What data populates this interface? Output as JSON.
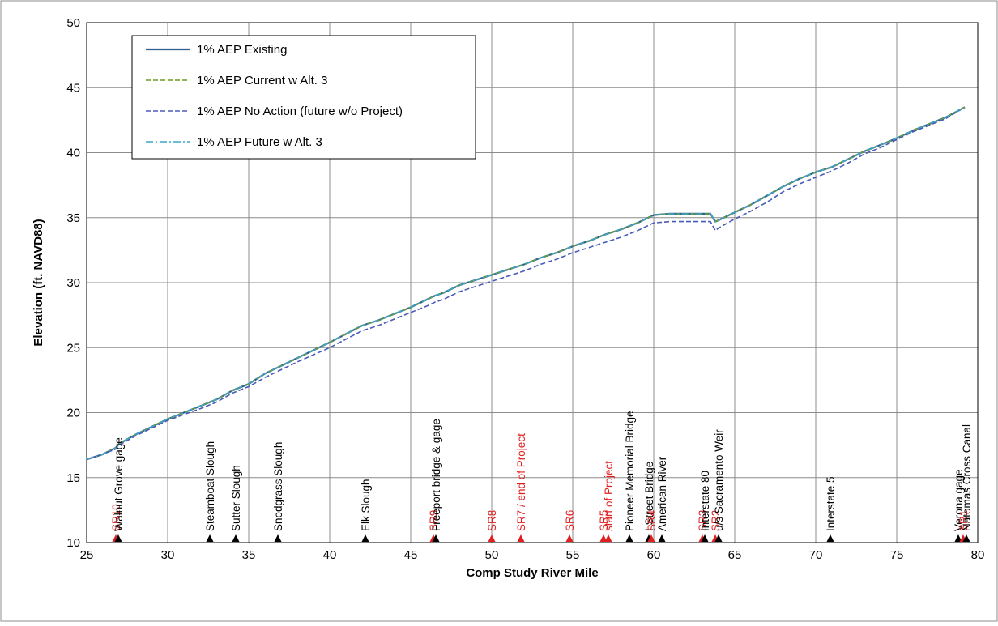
{
  "chart_data": {
    "type": "line",
    "title": "",
    "xlabel": "Comp Study River Mile",
    "ylabel": "Elevation (ft. NAVD88)",
    "xlim": [
      25,
      80
    ],
    "ylim": [
      10,
      50
    ],
    "xticks": [
      "25",
      "30",
      "35",
      "40",
      "45",
      "50",
      "55",
      "60",
      "65",
      "70",
      "75",
      "80"
    ],
    "yticks": [
      "10",
      "15",
      "20",
      "25",
      "30",
      "35",
      "40",
      "45",
      "50"
    ],
    "grid": true,
    "legend": "top-left",
    "series": [
      {
        "name": "1% AEP Existing",
        "color": "#2f5d8c",
        "style": "solid",
        "x": [
          25,
          26,
          26.8,
          27,
          28,
          30,
          32,
          33,
          34,
          35,
          36,
          37,
          38,
          40,
          42,
          43,
          44,
          45,
          46,
          46.5,
          47,
          48,
          50,
          51,
          52,
          53,
          54,
          55,
          56,
          57,
          58,
          59,
          60,
          61,
          62,
          63,
          63.5,
          63.8,
          64,
          65,
          66,
          67,
          68,
          69,
          70,
          71,
          72,
          73,
          74,
          75,
          76,
          77,
          78,
          79.2
        ],
        "y": [
          16.4,
          16.8,
          17.3,
          17.6,
          18.3,
          19.5,
          20.5,
          21,
          21.7,
          22.2,
          23,
          23.6,
          24.2,
          25.4,
          26.7,
          27.1,
          27.6,
          28.1,
          28.7,
          29,
          29.2,
          29.8,
          30.6,
          31,
          31.4,
          31.9,
          32.3,
          32.8,
          33.2,
          33.7,
          34.1,
          34.6,
          35.2,
          35.3,
          35.3,
          35.3,
          35.3,
          34.7,
          34.8,
          35.4,
          36,
          36.7,
          37.4,
          38,
          38.5,
          38.9,
          39.5,
          40.1,
          40.6,
          41.1,
          41.7,
          42.2,
          42.7,
          43.5
        ]
      },
      {
        "name": "1% AEP Current w Alt. 3",
        "color": "#6f9c1e",
        "style": "dashed",
        "x": [
          25,
          26,
          26.8,
          27,
          28,
          30,
          32,
          33,
          34,
          35,
          36,
          37,
          38,
          40,
          42,
          43,
          44,
          45,
          46,
          46.5,
          47,
          48,
          50,
          51,
          52,
          53,
          54,
          55,
          56,
          57,
          58,
          59,
          60,
          61,
          62,
          63,
          63.5,
          63.8,
          64,
          65,
          66,
          67,
          68,
          69,
          70,
          71,
          72,
          73,
          74,
          75,
          76,
          77,
          78,
          79.2
        ],
        "y": [
          16.4,
          16.8,
          17.3,
          17.6,
          18.3,
          19.5,
          20.5,
          21,
          21.7,
          22.2,
          23,
          23.6,
          24.2,
          25.4,
          26.7,
          27.1,
          27.6,
          28.1,
          28.7,
          29,
          29.2,
          29.8,
          30.6,
          31,
          31.4,
          31.9,
          32.3,
          32.8,
          33.2,
          33.7,
          34.1,
          34.6,
          35.2,
          35.3,
          35.3,
          35.3,
          35.3,
          34.7,
          34.8,
          35.4,
          36,
          36.7,
          37.4,
          38,
          38.5,
          38.9,
          39.5,
          40.1,
          40.6,
          41.1,
          41.7,
          42.2,
          42.7,
          43.5
        ]
      },
      {
        "name": "1% AEP No Action (future w/o Project)",
        "color": "#4a5ab8",
        "style": "dashed",
        "x": [
          25,
          26,
          26.8,
          27,
          28,
          30,
          32,
          33,
          34,
          35,
          36,
          37,
          38,
          40,
          42,
          43,
          44,
          45,
          46,
          46.5,
          47,
          48,
          50,
          51,
          52,
          53,
          54,
          55,
          56,
          57,
          58,
          59,
          60,
          61,
          62,
          63,
          63.5,
          63.8,
          64,
          65,
          66,
          67,
          68,
          69,
          70,
          71,
          72,
          73,
          74,
          75,
          76,
          77,
          78,
          79.2
        ],
        "y": [
          16.4,
          16.8,
          17.2,
          17.5,
          18.2,
          19.4,
          20.3,
          20.8,
          21.5,
          22,
          22.7,
          23.3,
          23.9,
          25,
          26.3,
          26.7,
          27.2,
          27.7,
          28.2,
          28.5,
          28.7,
          29.3,
          30.1,
          30.5,
          30.9,
          31.4,
          31.8,
          32.3,
          32.7,
          33.1,
          33.5,
          34,
          34.6,
          34.7,
          34.7,
          34.7,
          34.7,
          34,
          34.2,
          34.9,
          35.5,
          36.2,
          37,
          37.6,
          38.1,
          38.6,
          39.2,
          39.9,
          40.4,
          41,
          41.6,
          42.1,
          42.6,
          43.5
        ]
      },
      {
        "name": "1% AEP Future w Alt. 3",
        "color": "#3ba8c8",
        "style": "dashdot",
        "x": [
          25,
          26,
          26.8,
          27,
          28,
          30,
          32,
          33,
          34,
          35,
          36,
          37,
          38,
          40,
          42,
          43,
          44,
          45,
          46,
          46.5,
          47,
          48,
          50,
          51,
          52,
          53,
          54,
          55,
          56,
          57,
          58,
          59,
          60,
          61,
          62,
          63,
          63.5,
          63.8,
          64,
          65,
          66,
          67,
          68,
          69,
          70,
          71,
          72,
          73,
          74,
          75,
          76,
          77,
          78,
          79.2
        ],
        "y": [
          16.4,
          16.8,
          17.3,
          17.6,
          18.3,
          19.5,
          20.5,
          21,
          21.7,
          22.2,
          23,
          23.6,
          24.2,
          25.4,
          26.7,
          27.1,
          27.6,
          28.1,
          28.7,
          29,
          29.2,
          29.8,
          30.6,
          31,
          31.4,
          31.9,
          32.3,
          32.8,
          33.2,
          33.7,
          34.1,
          34.6,
          35.2,
          35.3,
          35.3,
          35.3,
          35.3,
          34.7,
          34.8,
          35.4,
          36,
          36.7,
          37.4,
          38,
          38.5,
          38.9,
          39.5,
          40.1,
          40.6,
          41.1,
          41.7,
          42.2,
          42.7,
          43.5
        ]
      }
    ],
    "annotations": [
      {
        "x": 26.8,
        "label": "SR10",
        "color": "#e02020"
      },
      {
        "x": 26.95,
        "label": "Walnut Grove gage",
        "color": "#000000"
      },
      {
        "x": 32.6,
        "label": "Steamboat Slough",
        "color": "#000000"
      },
      {
        "x": 34.2,
        "label": "Sutter Slough",
        "color": "#000000"
      },
      {
        "x": 36.8,
        "label": "Snodgrass Slough",
        "color": "#000000"
      },
      {
        "x": 42.2,
        "label": "Elk Slough",
        "color": "#000000"
      },
      {
        "x": 46.4,
        "label": "SR9",
        "color": "#e02020"
      },
      {
        "x": 46.55,
        "label": "Freeport bridge & gage",
        "color": "#000000"
      },
      {
        "x": 50.0,
        "label": "SR8",
        "color": "#e02020"
      },
      {
        "x": 51.8,
        "label": "SR7 / end of Project",
        "color": "#e02020"
      },
      {
        "x": 54.8,
        "label": "SR6",
        "color": "#e02020"
      },
      {
        "x": 56.9,
        "label": "SR5",
        "color": "#e02020"
      },
      {
        "x": 57.2,
        "label": "start of Project",
        "color": "#e02020"
      },
      {
        "x": 58.5,
        "label": "Pioneer Memorial Bridge",
        "color": "#000000"
      },
      {
        "x": 59.7,
        "label": "I Street Bridge",
        "color": "#000000"
      },
      {
        "x": 59.85,
        "label": "SR4",
        "color": "#e02020"
      },
      {
        "x": 60.5,
        "label": "American River",
        "color": "#000000"
      },
      {
        "x": 63.0,
        "label": "SR3",
        "color": "#e02020"
      },
      {
        "x": 63.15,
        "label": "Interstate 80",
        "color": "#000000"
      },
      {
        "x": 63.8,
        "label": "SR2",
        "color": "#e02020"
      },
      {
        "x": 64.0,
        "label": "u/s Sacramento Weir",
        "color": "#000000"
      },
      {
        "x": 70.9,
        "label": "Interstate 5",
        "color": "#000000"
      },
      {
        "x": 78.8,
        "label": "Verona gage",
        "color": "#000000"
      },
      {
        "x": 79.1,
        "label": "SR1",
        "color": "#e02020"
      },
      {
        "x": 79.3,
        "label": "Natomas Cross Canal",
        "color": "#000000"
      }
    ]
  }
}
